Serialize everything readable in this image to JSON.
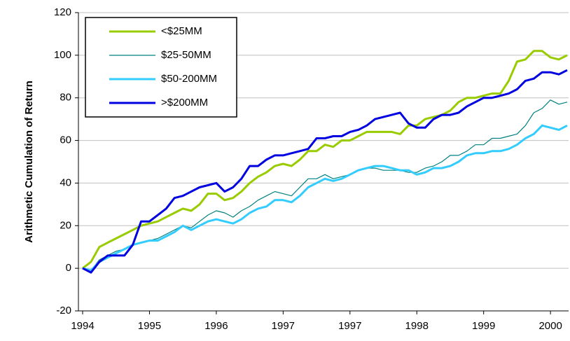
{
  "chart_data": {
    "type": "line",
    "y_label": "Arithmetic Cumulation of Return",
    "categories": [
      "1994",
      null,
      null,
      null,
      null,
      null,
      null,
      null,
      "1995",
      null,
      null,
      null,
      null,
      null,
      null,
      null,
      "1996",
      null,
      null,
      null,
      null,
      null,
      null,
      null,
      "1997",
      null,
      null,
      null,
      null,
      null,
      null,
      null,
      "1997",
      null,
      null,
      null,
      null,
      null,
      null,
      null,
      "1998",
      null,
      null,
      null,
      null,
      null,
      null,
      null,
      "1999",
      null,
      null,
      null,
      null,
      null,
      null,
      null,
      "2000",
      null,
      null
    ],
    "series": [
      {
        "name": "<$25MM",
        "color": "#99cc00",
        "width": 3,
        "values": [
          0,
          3,
          10,
          12,
          14,
          16,
          18,
          20,
          21,
          22,
          24,
          26,
          28,
          27,
          30,
          35,
          35,
          32,
          33,
          36,
          40,
          43,
          45,
          48,
          49,
          48,
          51,
          55,
          55,
          58,
          57,
          60,
          60,
          62,
          64,
          64,
          64,
          64,
          63,
          67,
          67,
          70,
          71,
          72,
          74,
          78,
          80,
          80,
          81,
          82,
          82,
          88,
          97,
          98,
          102,
          102,
          99,
          98,
          100
        ]
      },
      {
        "name": "$25-50MM",
        "color": "#008080",
        "width": 1.2,
        "values": [
          0,
          -1,
          4,
          6,
          8,
          9,
          11,
          12,
          13,
          14,
          16,
          18,
          20,
          19,
          22,
          25,
          27,
          26,
          24,
          27,
          29,
          32,
          34,
          36,
          35,
          34,
          38,
          42,
          42,
          44,
          42,
          43,
          44,
          46,
          47,
          47,
          46,
          46,
          46,
          45,
          45,
          47,
          48,
          50,
          53,
          53,
          55,
          58,
          58,
          61,
          61,
          62,
          63,
          67,
          73,
          75,
          79,
          77,
          78
        ]
      },
      {
        "name": "$50-200MM",
        "color": "#33ccff",
        "width": 3,
        "values": [
          0,
          -1,
          3,
          5,
          7,
          9,
          11,
          12,
          13,
          13,
          15,
          17,
          20,
          18,
          20,
          22,
          23,
          22,
          21,
          23,
          26,
          28,
          29,
          32,
          32,
          31,
          34,
          38,
          40,
          42,
          41,
          42,
          44,
          46,
          47,
          48,
          48,
          47,
          46,
          46,
          44,
          45,
          47,
          47,
          48,
          50,
          53,
          54,
          54,
          55,
          55,
          56,
          58,
          61,
          63,
          67,
          66,
          65,
          67
        ]
      },
      {
        "name": ">$200MM",
        "color": "#0000e0",
        "width": 3,
        "values": [
          0,
          -2,
          3,
          6,
          6,
          6,
          11,
          22,
          22,
          25,
          28,
          33,
          34,
          36,
          38,
          39,
          40,
          36,
          38,
          42,
          48,
          48,
          51,
          53,
          53,
          54,
          55,
          56,
          61,
          61,
          62,
          62,
          64,
          65,
          67,
          70,
          71,
          72,
          73,
          68,
          66,
          66,
          70,
          72,
          72,
          73,
          76,
          78,
          80,
          80,
          81,
          82,
          84,
          88,
          89,
          92,
          92,
          91,
          93
        ]
      }
    ],
    "ylim": [
      -20,
      120
    ],
    "yticks": [
      -20,
      0,
      20,
      40,
      60,
      80,
      100,
      120
    ],
    "grid": true,
    "legend": "top-left"
  }
}
